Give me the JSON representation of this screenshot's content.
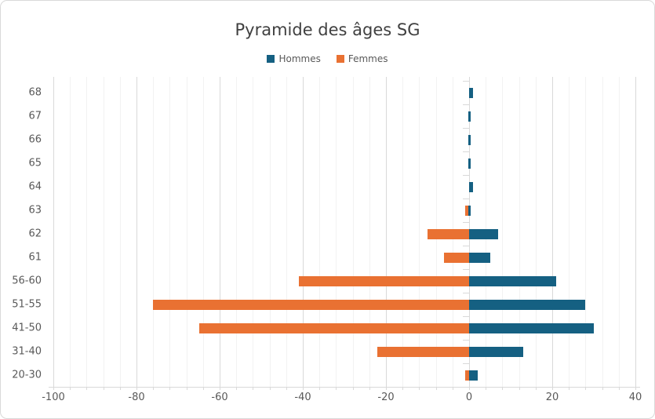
{
  "chart_title": "Pyramide des âges SG",
  "chart_data": {
    "type": "bar",
    "orientation": "horizontal",
    "title": "Pyramide des âges SG",
    "categories": [
      "68",
      "67",
      "66",
      "65",
      "64",
      "63",
      "62",
      "61",
      "56-60",
      "51-55",
      "41-50",
      "31-40",
      "20-30"
    ],
    "series": [
      {
        "name": "Hommes",
        "color": "#156082",
        "values": [
          1,
          0,
          0,
          0,
          1,
          0,
          7,
          5,
          21,
          28,
          30,
          13,
          2
        ]
      },
      {
        "name": "Femmes",
        "color": "#E97132",
        "values": [
          0,
          0,
          0,
          0,
          0,
          -1,
          -10,
          -6,
          -41,
          -76,
          -65,
          -22,
          -1
        ]
      }
    ],
    "xlim": [
      -100,
      40
    ],
    "x_tick_labels": [
      "-100",
      "-80",
      "-60",
      "-40",
      "-20",
      "0",
      "20",
      "40"
    ],
    "x_tick_values": [
      -100,
      -80,
      -60,
      -40,
      -20,
      0,
      20,
      40
    ],
    "minor_grid_step": 4,
    "grid": true,
    "legend_position": "top-center"
  },
  "colors": {
    "hommes": "#156082",
    "femmes": "#E97132",
    "title_text": "#404040",
    "axis_text": "#595959",
    "grid_minor": "#F2F2F2",
    "grid_major": "#D9D9D9",
    "axis_line": "#D9D9D9",
    "chart_border": "#D9D9D9",
    "background": "#FFFFFF"
  }
}
